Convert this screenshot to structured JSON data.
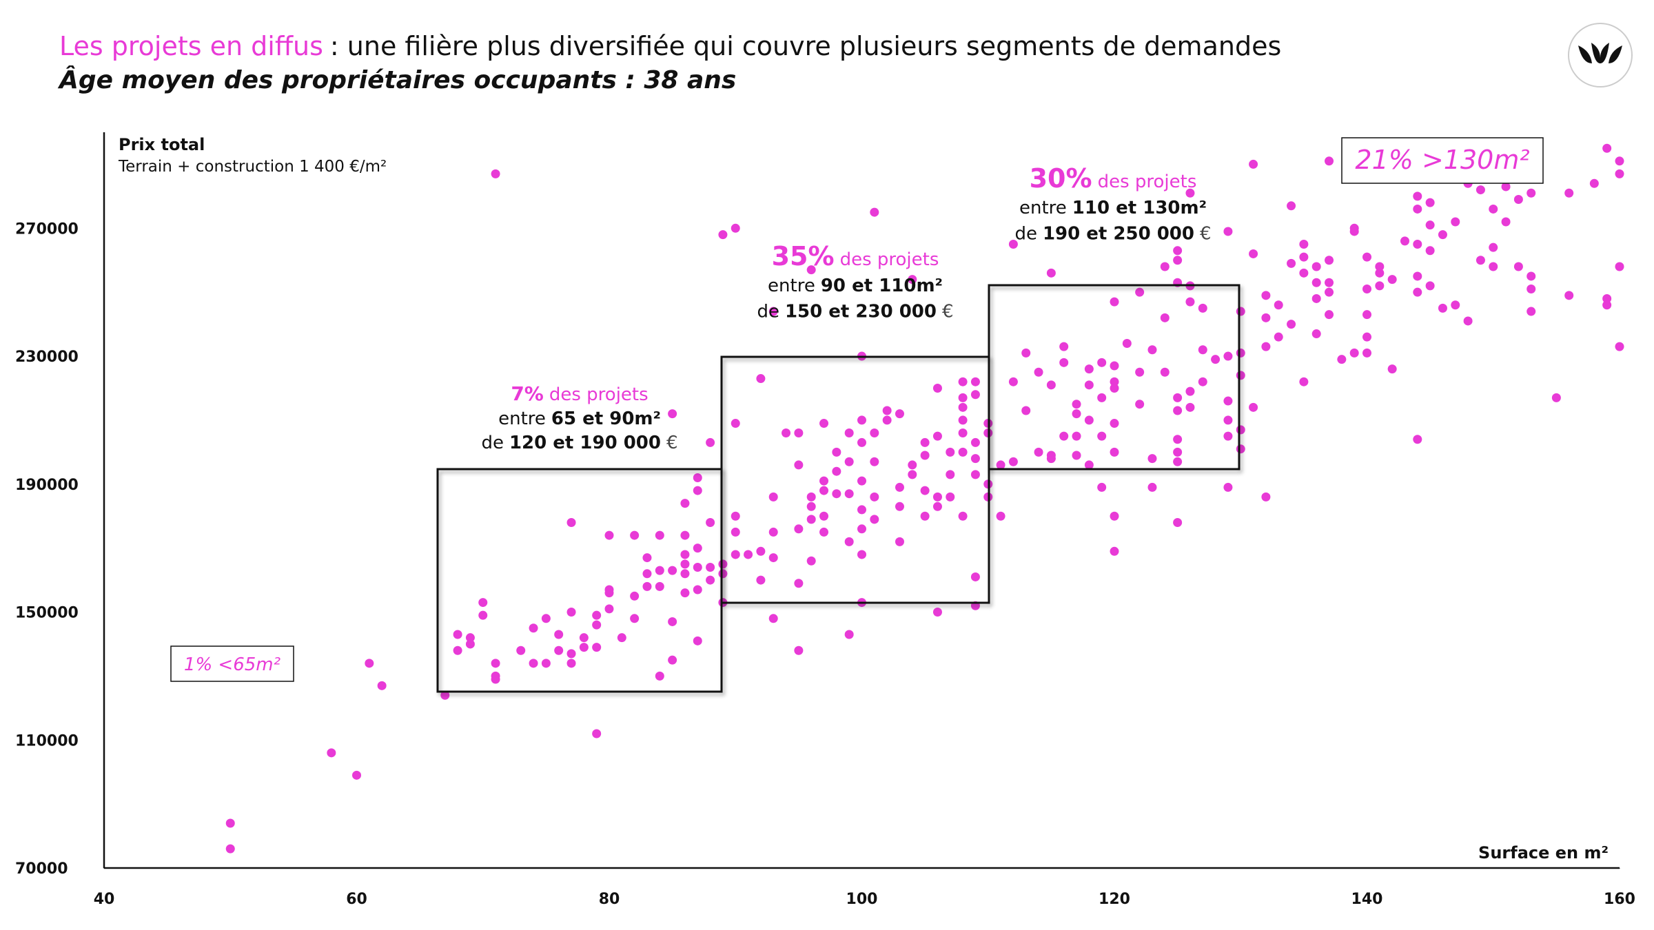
{
  "chart_data": {
    "type": "scatter",
    "title": [
      "Les projets en diffus",
      ": une filière plus diversifiée qui couvre plusieurs segments de demandes"
    ],
    "subtitle": "Âge moyen des propriétaires occupants : 38 ans",
    "y_label": "Prix total",
    "y_sublabel": "Terrain + construction 1 400 €/m²",
    "x_label": "Surface en m²",
    "annotations": [
      {
        "text": "1% <65m²"
      },
      {
        "text": "21% >130m²"
      },
      {
        "pct": "7%",
        "label": "des projets",
        "range": [
          "entre",
          "65 et 90m²"
        ],
        "price": [
          "de",
          "120 et 190 000",
          "€"
        ]
      },
      {
        "pct": "35%",
        "label": "des projets",
        "range": [
          "entre",
          "90 et 110m²"
        ],
        "price": [
          "de",
          "150 et 230 000",
          "€"
        ]
      },
      {
        "pct": "30%",
        "label": "des projets",
        "range": [
          "entre",
          "110 et 130m²"
        ],
        "price": [
          "de",
          "190 et 250 000",
          "€"
        ]
      }
    ],
    "color": "#e83ad6",
    "xlim": [
      40,
      160
    ],
    "xticks": [
      40,
      60,
      80,
      100,
      120,
      140,
      160
    ],
    "ylim": [
      70000,
      300000
    ],
    "yticks": [
      70000,
      110000,
      150000,
      190000,
      230000,
      270000
    ],
    "grid": false,
    "x": [
      50,
      50,
      58,
      60,
      61,
      62,
      67,
      71,
      68,
      68,
      69,
      69,
      70,
      70,
      71,
      71,
      71,
      73,
      74,
      74,
      75,
      75,
      76,
      76,
      77,
      77,
      77,
      77,
      78,
      78,
      79,
      79,
      79,
      80,
      80,
      80,
      80,
      81,
      82,
      82,
      82,
      83,
      83,
      83,
      84,
      84,
      84,
      84,
      85,
      85,
      85,
      85,
      86,
      86,
      86,
      86,
      86,
      86,
      87,
      87,
      87,
      87,
      87,
      87,
      79,
      88,
      88,
      88,
      88,
      89,
      89,
      89,
      89,
      90,
      90,
      90,
      90,
      90,
      91,
      92,
      92,
      92,
      93,
      93,
      93,
      93,
      93,
      94,
      95,
      95,
      95,
      95,
      95,
      96,
      96,
      96,
      96,
      97,
      97,
      97,
      97,
      97,
      98,
      98,
      98,
      99,
      99,
      99,
      99,
      99,
      100,
      100,
      100,
      100,
      100,
      100,
      100,
      100,
      101,
      101,
      101,
      101,
      101,
      102,
      102,
      103,
      103,
      103,
      103,
      104,
      104,
      104,
      105,
      105,
      105,
      105,
      106,
      106,
      106,
      106,
      106,
      107,
      107,
      107,
      108,
      108,
      108,
      108,
      108,
      108,
      108,
      109,
      109,
      109,
      109,
      109,
      109,
      109,
      110,
      110,
      110,
      110,
      96,
      111,
      111,
      112,
      112,
      112,
      113,
      113,
      114,
      114,
      115,
      115,
      115,
      115,
      116,
      116,
      116,
      117,
      117,
      117,
      117,
      118,
      118,
      118,
      118,
      119,
      119,
      119,
      119,
      120,
      120,
      120,
      120,
      120,
      120,
      120,
      120,
      121,
      122,
      122,
      122,
      123,
      123,
      123,
      124,
      124,
      125,
      125,
      125,
      125,
      125,
      125,
      125,
      125,
      126,
      126,
      126,
      126,
      127,
      127,
      127,
      128,
      129,
      129,
      129,
      129,
      129,
      129,
      130,
      130,
      130,
      130,
      130,
      126,
      124,
      125,
      131,
      131,
      131,
      132,
      132,
      132,
      132,
      133,
      133,
      134,
      134,
      134,
      135,
      135,
      135,
      135,
      136,
      136,
      136,
      136,
      137,
      137,
      137,
      137,
      137,
      138,
      139,
      139,
      139,
      140,
      140,
      140,
      140,
      140,
      141,
      141,
      141,
      142,
      142,
      143,
      144,
      144,
      144,
      144,
      144,
      144,
      145,
      145,
      145,
      145,
      146,
      146,
      147,
      147,
      148,
      148,
      149,
      149,
      150,
      150,
      150,
      151,
      151,
      152,
      152,
      153,
      153,
      153,
      153,
      155,
      156,
      156,
      158,
      159,
      159,
      159,
      160,
      160,
      160,
      160
    ],
    "values": [
      84000,
      76000,
      106000,
      99000,
      134000,
      127000,
      124000,
      287000,
      143000,
      138000,
      140000,
      142000,
      153000,
      149000,
      134000,
      130000,
      129000,
      138000,
      145000,
      134000,
      148000,
      134000,
      138000,
      143000,
      150000,
      137000,
      134000,
      178000,
      139000,
      142000,
      146000,
      149000,
      139000,
      151000,
      156000,
      157000,
      174000,
      142000,
      148000,
      155000,
      174000,
      158000,
      167000,
      162000,
      174000,
      158000,
      130000,
      163000,
      147000,
      135000,
      163000,
      212000,
      168000,
      165000,
      162000,
      156000,
      174000,
      184000,
      157000,
      164000,
      170000,
      141000,
      188000,
      192000,
      112000,
      160000,
      164000,
      178000,
      203000,
      268000,
      165000,
      162000,
      153000,
      270000,
      180000,
      209000,
      175000,
      168000,
      168000,
      223000,
      169000,
      160000,
      167000,
      175000,
      148000,
      186000,
      244000,
      206000,
      206000,
      196000,
      176000,
      159000,
      138000,
      166000,
      186000,
      183000,
      179000,
      209000,
      188000,
      191000,
      180000,
      175000,
      187000,
      194000,
      200000,
      206000,
      197000,
      187000,
      172000,
      143000,
      203000,
      210000,
      191000,
      182000,
      176000,
      168000,
      153000,
      230000,
      206000,
      197000,
      186000,
      179000,
      275000,
      213000,
      210000,
      212000,
      189000,
      183000,
      172000,
      196000,
      193000,
      254000,
      199000,
      203000,
      188000,
      180000,
      183000,
      186000,
      220000,
      150000,
      205000,
      200000,
      193000,
      186000,
      200000,
      217000,
      214000,
      210000,
      222000,
      180000,
      206000,
      203000,
      198000,
      193000,
      222000,
      218000,
      161000,
      152000,
      209000,
      206000,
      190000,
      186000,
      257000,
      196000,
      180000,
      222000,
      197000,
      265000,
      213000,
      231000,
      200000,
      225000,
      198000,
      199000,
      221000,
      256000,
      205000,
      233000,
      228000,
      199000,
      205000,
      215000,
      212000,
      226000,
      221000,
      210000,
      196000,
      217000,
      205000,
      189000,
      228000,
      200000,
      209000,
      227000,
      222000,
      220000,
      180000,
      169000,
      247000,
      234000,
      215000,
      250000,
      225000,
      198000,
      232000,
      189000,
      242000,
      225000,
      217000,
      213000,
      204000,
      200000,
      197000,
      178000,
      263000,
      253000,
      247000,
      219000,
      214000,
      252000,
      222000,
      245000,
      232000,
      229000,
      230000,
      216000,
      210000,
      205000,
      189000,
      269000,
      224000,
      244000,
      231000,
      207000,
      201000,
      281000,
      258000,
      260000,
      214000,
      262000,
      290000,
      186000,
      233000,
      242000,
      249000,
      236000,
      246000,
      240000,
      259000,
      277000,
      256000,
      265000,
      261000,
      222000,
      237000,
      248000,
      253000,
      258000,
      250000,
      260000,
      253000,
      243000,
      291000,
      229000,
      231000,
      270000,
      269000,
      261000,
      251000,
      236000,
      243000,
      231000,
      252000,
      258000,
      256000,
      226000,
      254000,
      266000,
      265000,
      280000,
      276000,
      255000,
      250000,
      204000,
      263000,
      278000,
      271000,
      252000,
      245000,
      268000,
      272000,
      246000,
      284000,
      241000,
      282000,
      260000,
      264000,
      258000,
      276000,
      283000,
      272000,
      279000,
      258000,
      244000,
      251000,
      255000,
      281000,
      217000,
      249000,
      281000,
      284000,
      295000,
      248000,
      246000,
      291000,
      287000,
      258000,
      233000
    ]
  }
}
